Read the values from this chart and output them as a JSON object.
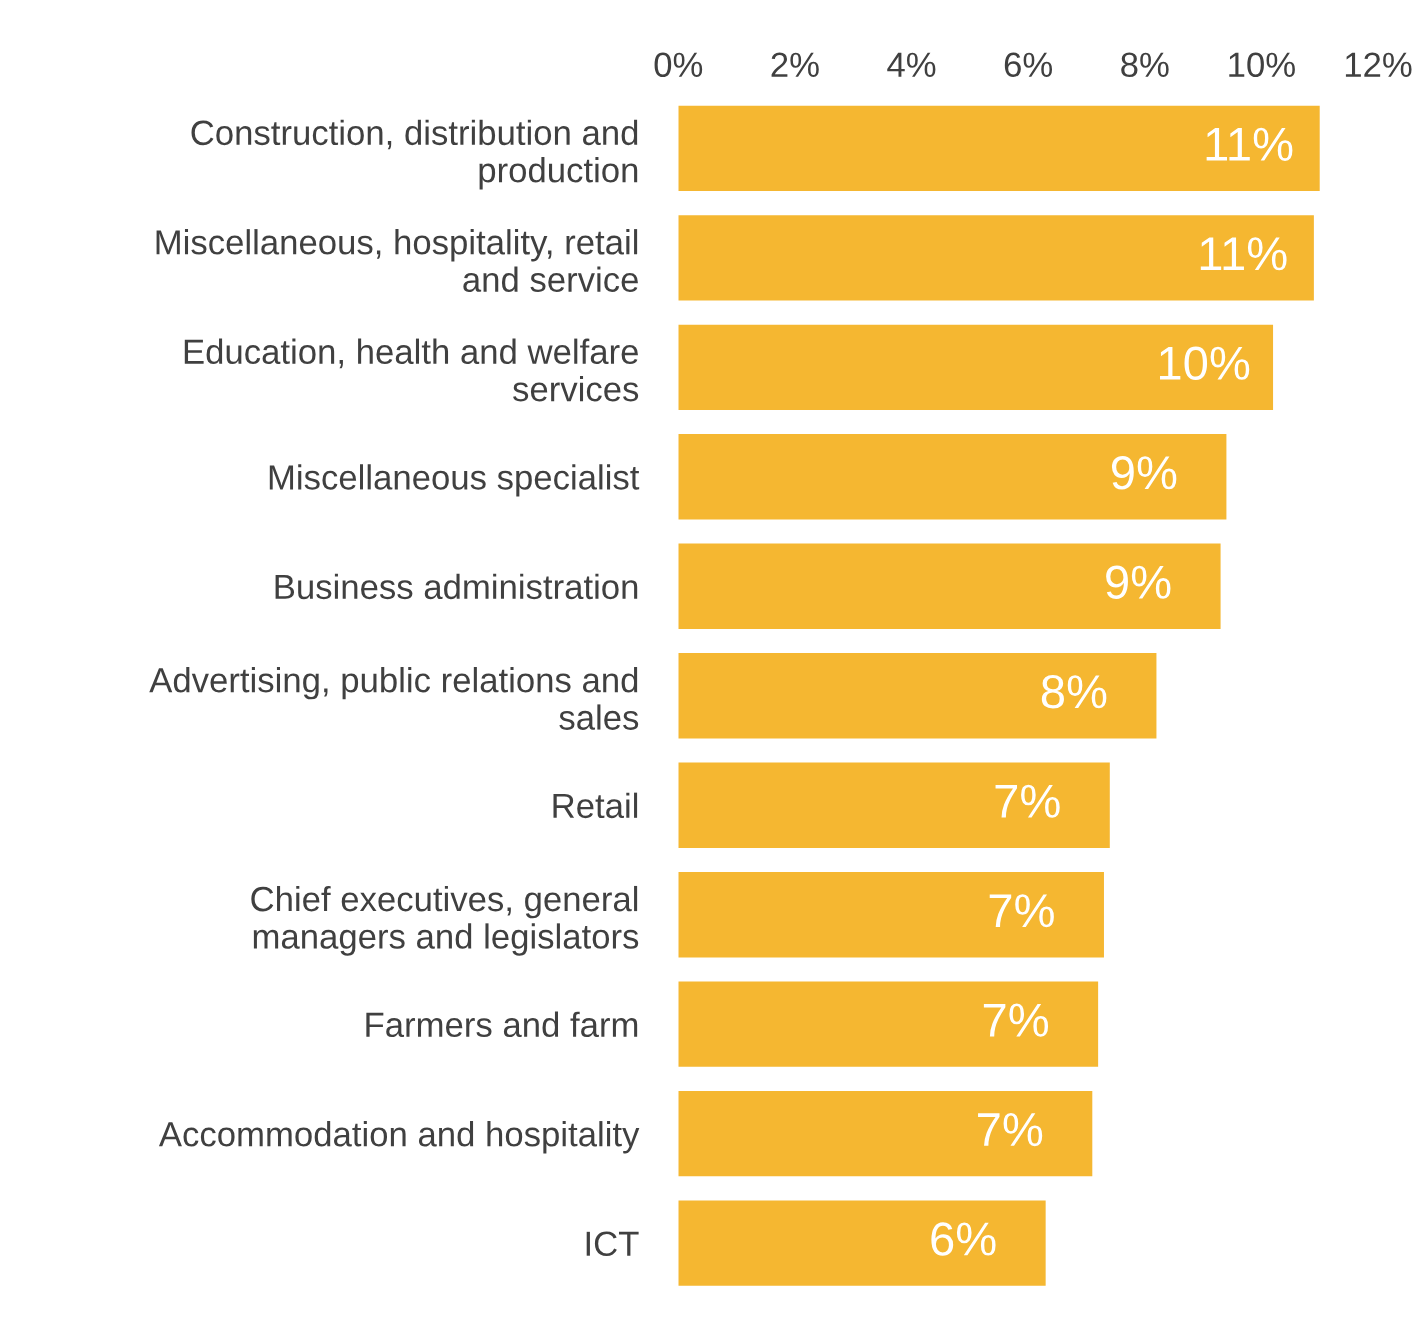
{
  "chart_data": {
    "type": "bar",
    "orientation": "horizontal",
    "categories": [
      "Construction, distribution and\nproduction",
      "Miscellaneous, hospitality, retail\nand service",
      "Education, health and welfare\nservices",
      "Miscellaneous specialist",
      "Business administration",
      "Advertising, public relations and\nsales",
      "Retail",
      "Chief executives, general\nmanagers and legislators",
      "Farmers and farm",
      "Accommodation and hospitality",
      "ICT"
    ],
    "values": [
      11.0,
      10.9,
      10.2,
      9.4,
      9.3,
      8.2,
      7.4,
      7.3,
      7.2,
      7.1,
      6.3
    ],
    "value_labels": [
      "11%",
      "11%",
      "10%",
      "9%",
      "9%",
      "8%",
      "7%",
      "7%",
      "7%",
      "7%",
      "6%"
    ],
    "color": "#f5b731",
    "xlim": [
      0,
      12
    ],
    "xticks": [
      {
        "value": 0,
        "label": "0%"
      },
      {
        "value": 2,
        "label": "2%"
      },
      {
        "value": 4,
        "label": "4%"
      },
      {
        "value": 6,
        "label": "6%"
      },
      {
        "value": 8,
        "label": "8%"
      },
      {
        "value": 10,
        "label": "10%"
      },
      {
        "value": 12,
        "label": "12%"
      }
    ],
    "grid": false
  }
}
